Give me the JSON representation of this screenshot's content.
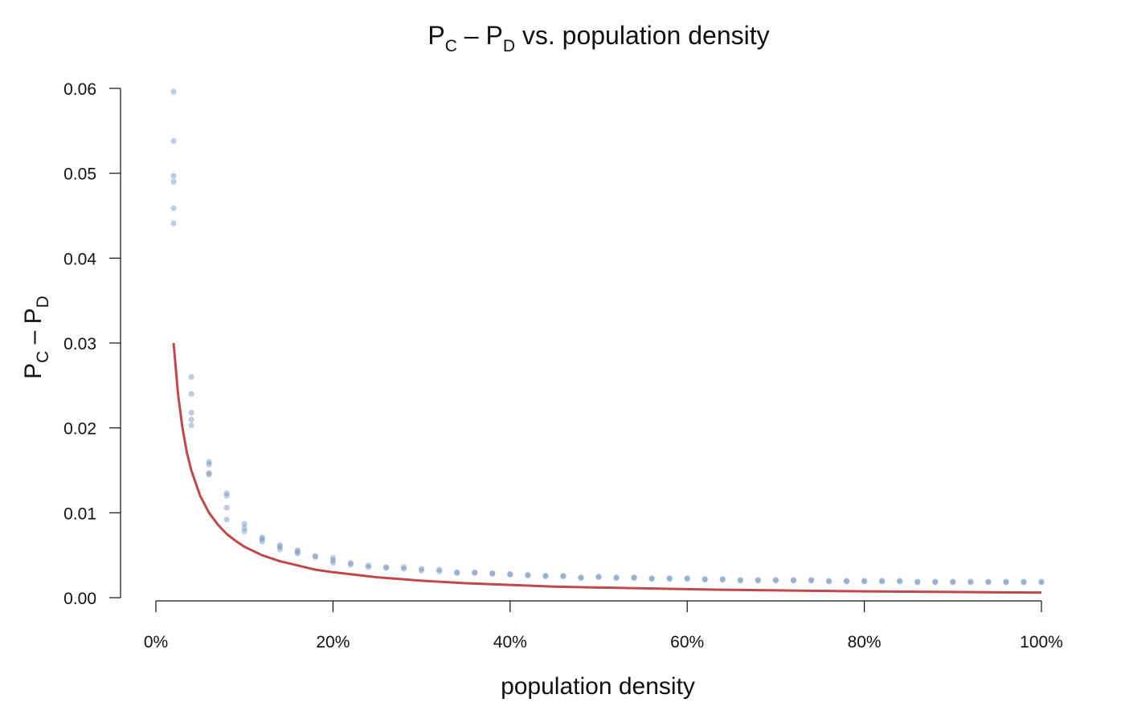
{
  "chart_data": {
    "type": "scatter",
    "title": {
      "p1": "P",
      "s1": "C",
      "dash": " – ",
      "p2": "P",
      "s2": "D",
      "rest": " vs. population density"
    },
    "ylabel": {
      "p1": "P",
      "s1": "C",
      "dash": " – ",
      "p2": "P",
      "s2": "D"
    },
    "xlabel": "population density",
    "xlim": [
      0,
      1
    ],
    "ylim": [
      0,
      0.06
    ],
    "x_ticks": [
      {
        "value": 0.0,
        "label": "0%"
      },
      {
        "value": 0.2,
        "label": "20%"
      },
      {
        "value": 0.4,
        "label": "40%"
      },
      {
        "value": 0.6,
        "label": "60%"
      },
      {
        "value": 0.8,
        "label": "80%"
      },
      {
        "value": 1.0,
        "label": "100%"
      }
    ],
    "y_ticks": [
      {
        "value": 0.0,
        "label": "0.00"
      },
      {
        "value": 0.01,
        "label": "0.01"
      },
      {
        "value": 0.02,
        "label": "0.02"
      },
      {
        "value": 0.03,
        "label": "0.03"
      },
      {
        "value": 0.04,
        "label": "0.04"
      },
      {
        "value": 0.05,
        "label": "0.05"
      },
      {
        "value": 0.06,
        "label": "0.06"
      }
    ],
    "grid": false,
    "point_color": "#6f8fba",
    "curve_color": "#c0484b",
    "series": [
      {
        "type": "scatter",
        "points": [
          [
            0.02,
            0.0596
          ],
          [
            0.02,
            0.0538
          ],
          [
            0.02,
            0.0497
          ],
          [
            0.02,
            0.049
          ],
          [
            0.02,
            0.0459
          ],
          [
            0.02,
            0.0441
          ],
          [
            0.04,
            0.026
          ],
          [
            0.04,
            0.024
          ],
          [
            0.04,
            0.0218
          ],
          [
            0.04,
            0.021
          ],
          [
            0.04,
            0.0203
          ],
          [
            0.06,
            0.016
          ],
          [
            0.06,
            0.0157
          ],
          [
            0.06,
            0.0147
          ],
          [
            0.06,
            0.0145
          ],
          [
            0.08,
            0.0123
          ],
          [
            0.08,
            0.012
          ],
          [
            0.08,
            0.0106
          ],
          [
            0.08,
            0.0092
          ],
          [
            0.1,
            0.0087
          ],
          [
            0.1,
            0.0082
          ],
          [
            0.1,
            0.0078
          ],
          [
            0.12,
            0.0071
          ],
          [
            0.12,
            0.0069
          ],
          [
            0.12,
            0.0066
          ],
          [
            0.14,
            0.0062
          ],
          [
            0.14,
            0.006
          ],
          [
            0.14,
            0.0057
          ],
          [
            0.16,
            0.0056
          ],
          [
            0.16,
            0.0054
          ],
          [
            0.16,
            0.0052
          ],
          [
            0.18,
            0.0049
          ],
          [
            0.18,
            0.0048
          ],
          [
            0.2,
            0.0047
          ],
          [
            0.2,
            0.0044
          ],
          [
            0.2,
            0.0041
          ],
          [
            0.22,
            0.0041
          ],
          [
            0.22,
            0.0039
          ],
          [
            0.24,
            0.0038
          ],
          [
            0.24,
            0.0036
          ],
          [
            0.26,
            0.0036
          ],
          [
            0.26,
            0.0035
          ],
          [
            0.28,
            0.0036
          ],
          [
            0.28,
            0.0034
          ],
          [
            0.3,
            0.0034
          ],
          [
            0.3,
            0.0032
          ],
          [
            0.32,
            0.0033
          ],
          [
            0.32,
            0.0031
          ],
          [
            0.34,
            0.003
          ],
          [
            0.34,
            0.0029
          ],
          [
            0.36,
            0.003
          ],
          [
            0.36,
            0.0029
          ],
          [
            0.38,
            0.0029
          ],
          [
            0.38,
            0.0028
          ],
          [
            0.4,
            0.0028
          ],
          [
            0.4,
            0.0027
          ],
          [
            0.42,
            0.0027
          ],
          [
            0.42,
            0.0026
          ],
          [
            0.44,
            0.0026
          ],
          [
            0.44,
            0.0025
          ],
          [
            0.46,
            0.0026
          ],
          [
            0.46,
            0.0025
          ],
          [
            0.48,
            0.0024
          ],
          [
            0.48,
            0.0023
          ],
          [
            0.5,
            0.0025
          ],
          [
            0.5,
            0.0024
          ],
          [
            0.52,
            0.0024
          ],
          [
            0.52,
            0.0023
          ],
          [
            0.54,
            0.0024
          ],
          [
            0.54,
            0.0023
          ],
          [
            0.56,
            0.0023
          ],
          [
            0.56,
            0.0022
          ],
          [
            0.58,
            0.0023
          ],
          [
            0.58,
            0.0022
          ],
          [
            0.6,
            0.0023
          ],
          [
            0.6,
            0.0022
          ],
          [
            0.62,
            0.0022
          ],
          [
            0.62,
            0.0021
          ],
          [
            0.64,
            0.0022
          ],
          [
            0.64,
            0.0021
          ],
          [
            0.66,
            0.0021
          ],
          [
            0.66,
            0.002
          ],
          [
            0.68,
            0.0021
          ],
          [
            0.68,
            0.002
          ],
          [
            0.7,
            0.0021
          ],
          [
            0.7,
            0.002
          ],
          [
            0.72,
            0.0021
          ],
          [
            0.72,
            0.002
          ],
          [
            0.74,
            0.0021
          ],
          [
            0.74,
            0.002
          ],
          [
            0.76,
            0.002
          ],
          [
            0.76,
            0.0019
          ],
          [
            0.78,
            0.002
          ],
          [
            0.78,
            0.0019
          ],
          [
            0.8,
            0.002
          ],
          [
            0.8,
            0.0019
          ],
          [
            0.82,
            0.002
          ],
          [
            0.82,
            0.0019
          ],
          [
            0.84,
            0.002
          ],
          [
            0.84,
            0.0019
          ],
          [
            0.86,
            0.0019
          ],
          [
            0.86,
            0.0018
          ],
          [
            0.88,
            0.0019
          ],
          [
            0.88,
            0.0018
          ],
          [
            0.9,
            0.0019
          ],
          [
            0.9,
            0.0018
          ],
          [
            0.92,
            0.0019
          ],
          [
            0.92,
            0.0018
          ],
          [
            0.94,
            0.0019
          ],
          [
            0.94,
            0.0018
          ],
          [
            0.96,
            0.0019
          ],
          [
            0.96,
            0.0018
          ],
          [
            0.98,
            0.0019
          ],
          [
            0.98,
            0.0018
          ],
          [
            1.0,
            0.0019
          ],
          [
            1.0,
            0.0018
          ]
        ]
      },
      {
        "type": "line",
        "points": [
          [
            0.02,
            0.03
          ],
          [
            0.025,
            0.024
          ],
          [
            0.03,
            0.02
          ],
          [
            0.035,
            0.0171
          ],
          [
            0.04,
            0.015
          ],
          [
            0.05,
            0.012
          ],
          [
            0.06,
            0.01
          ],
          [
            0.07,
            0.0086
          ],
          [
            0.08,
            0.0075
          ],
          [
            0.09,
            0.0067
          ],
          [
            0.1,
            0.006
          ],
          [
            0.12,
            0.005
          ],
          [
            0.14,
            0.0043
          ],
          [
            0.16,
            0.0038
          ],
          [
            0.18,
            0.0033
          ],
          [
            0.2,
            0.003
          ],
          [
            0.25,
            0.0024
          ],
          [
            0.3,
            0.002
          ],
          [
            0.35,
            0.0017
          ],
          [
            0.4,
            0.0015
          ],
          [
            0.45,
            0.0013
          ],
          [
            0.5,
            0.0012
          ],
          [
            0.55,
            0.0011
          ],
          [
            0.6,
            0.001
          ],
          [
            0.65,
            0.00092
          ],
          [
            0.7,
            0.00086
          ],
          [
            0.75,
            0.0008
          ],
          [
            0.8,
            0.00075
          ],
          [
            0.85,
            0.00071
          ],
          [
            0.9,
            0.00067
          ],
          [
            0.95,
            0.00063
          ],
          [
            1.0,
            0.0006
          ]
        ]
      }
    ]
  }
}
